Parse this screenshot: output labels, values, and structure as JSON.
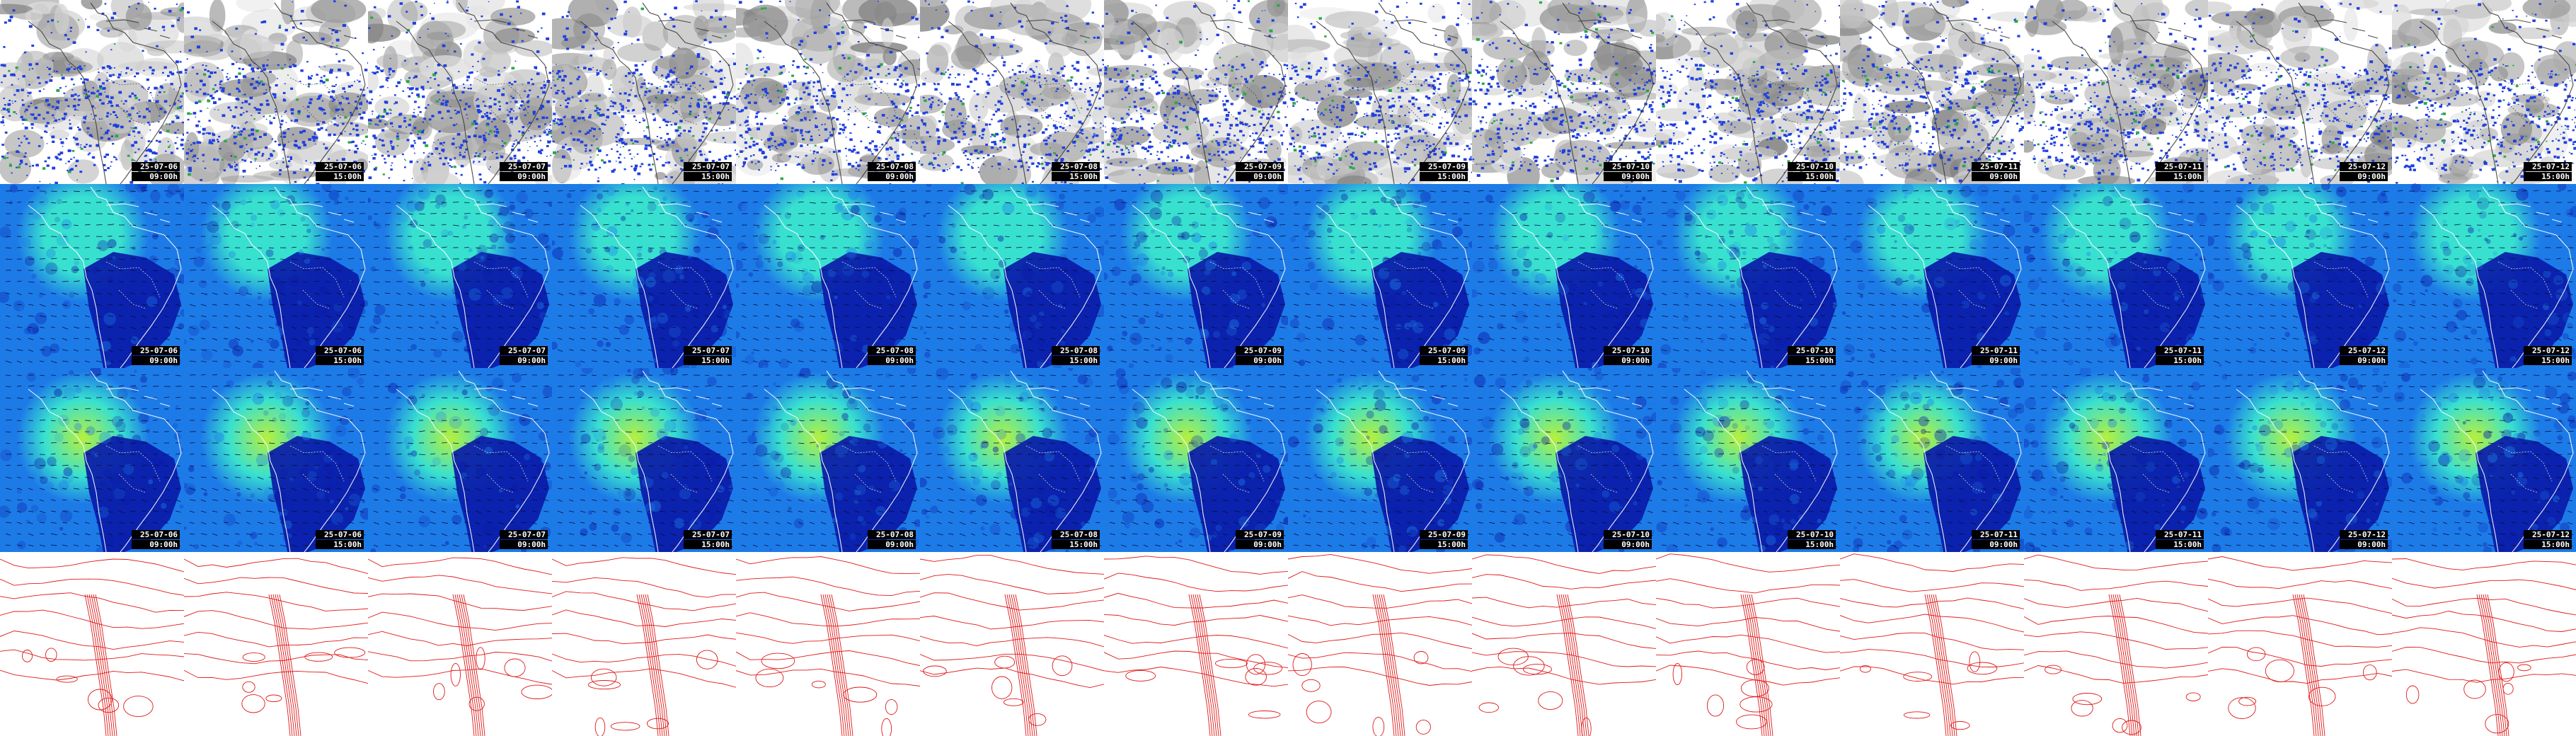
{
  "title": "",
  "frames": [
    {
      "date": "25-07-06",
      "time": "09:00h"
    },
    {
      "date": "25-07-06",
      "time": "15:00h"
    },
    {
      "date": "25-07-07",
      "time": "09:00h"
    },
    {
      "date": "25-07-07",
      "time": "15:00h"
    },
    {
      "date": "25-07-08",
      "time": "09:00h"
    },
    {
      "date": "25-07-08",
      "time": "15:00h"
    },
    {
      "date": "25-07-09",
      "time": "09:00h"
    },
    {
      "date": "25-07-09",
      "time": "15:00h"
    },
    {
      "date": "25-07-10",
      "time": "09:00h"
    },
    {
      "date": "25-07-10",
      "time": "15:00h"
    },
    {
      "date": "25-07-11",
      "time": "09:00h"
    },
    {
      "date": "25-07-11",
      "time": "15:00h"
    },
    {
      "date": "25-07-12",
      "time": "09:00h"
    },
    {
      "date": "25-07-12",
      "time": "15:00h"
    }
  ],
  "rows": [
    {
      "name": "precipitation-row",
      "style": "precip",
      "show_stamp": true
    },
    {
      "name": "wind-speed-upper-row",
      "style": "wind",
      "show_stamp": true
    },
    {
      "name": "wind-speed-lower-row",
      "style": "wind-strong",
      "show_stamp": true
    },
    {
      "name": "pressure-isobar-row",
      "style": "isobar",
      "show_stamp": false
    }
  ],
  "colors": {
    "background": "#ffffff",
    "cloud_gray": "#9a9a9a",
    "precip_blue": "#1f3fe0",
    "precip_green": "#2aa84a",
    "wind_deep": "#0a1aa8",
    "wind_mid": "#1d7be8",
    "wind_high": "#38e0d0",
    "wind_peak": "#b6f03c",
    "coast": "#ffffff",
    "isobar": "#e01818",
    "stamp_bg": "#000000",
    "stamp_text": "#ffffff"
  }
}
